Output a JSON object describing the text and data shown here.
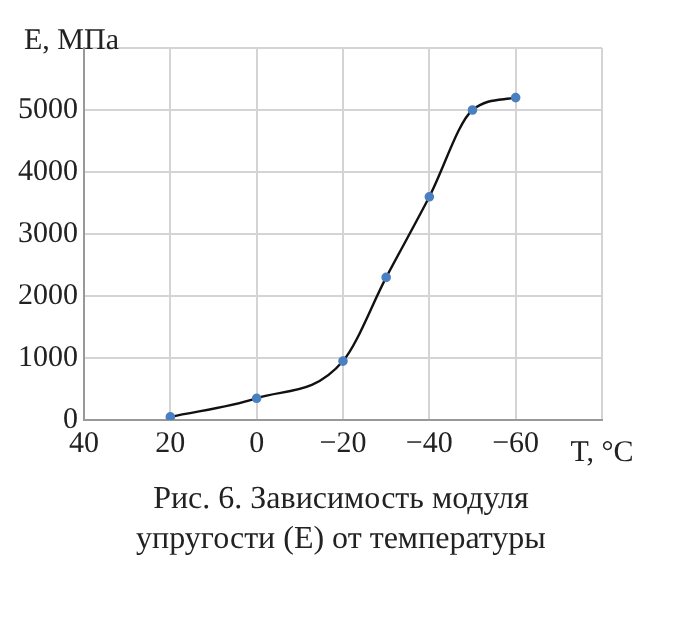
{
  "chart_data": {
    "type": "line",
    "ylabel": "E, МПа",
    "xlabel": "T, °C",
    "x": [
      20,
      0,
      -20,
      -30,
      -40,
      -50,
      -60
    ],
    "series": [
      {
        "color": "#111111",
        "colors": [
          "#4a7fc1",
          "#4a7fc1",
          "#4a7fc1",
          "#4a7fc1",
          "#4a7fc1",
          "#4a7fc1",
          "#4a7fc1"
        ],
        "values": [
          50,
          350,
          950,
          2300,
          3600,
          5000,
          5200
        ]
      }
    ],
    "xlim": [
      40,
      -80
    ],
    "xticks": [
      40,
      20,
      0,
      {
        "value": -20,
        "label": "−20"
      },
      {
        "value": -40,
        "label": "−40"
      },
      {
        "value": -60,
        "label": "−60"
      },
      {
        "value": -80,
        "label": null
      }
    ],
    "ylim": [
      0,
      6000
    ],
    "yticks": [
      0,
      1000,
      2000,
      3000,
      4000,
      5000,
      {
        "value": 6000,
        "label": null
      }
    ],
    "grid": true,
    "legend": false,
    "marker": "circle",
    "line_style": "solid",
    "annotations": [
      "Рис. 6. Зависимость модуля упругости (E) от температуры"
    ]
  }
}
